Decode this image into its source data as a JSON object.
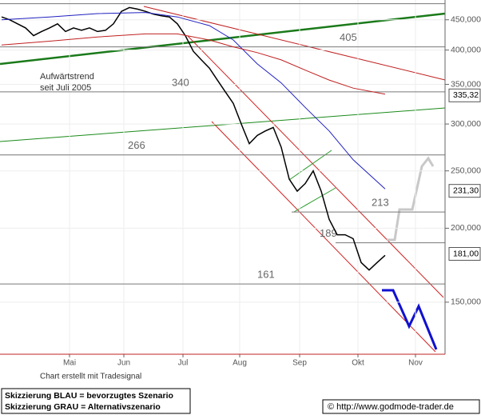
{
  "chart_data": {
    "type": "line",
    "log_y": true,
    "grid": true,
    "ylim": [
      122.5,
      486
    ],
    "yticks": [
      {
        "value": 450,
        "label": "450,000"
      },
      {
        "value": 400,
        "label": "400,000"
      },
      {
        "value": 350,
        "label": "350,000"
      },
      {
        "value": 300,
        "label": "300,000"
      },
      {
        "value": 250,
        "label": "250,000"
      },
      {
        "value": 200,
        "label": "200,000"
      },
      {
        "value": 150,
        "label": "150,000"
      }
    ],
    "xlim": [
      -0.2,
      55.8
    ],
    "xticks": [
      {
        "value": 8.5,
        "label": "Mai"
      },
      {
        "value": 15.3,
        "label": "Jun"
      },
      {
        "value": 22.7,
        "label": "Jul"
      },
      {
        "value": 29.8,
        "label": "Aug"
      },
      {
        "value": 37.3,
        "label": "Sep"
      },
      {
        "value": 44.6,
        "label": "Okt"
      },
      {
        "value": 51.8,
        "label": "Nov"
      }
    ],
    "series": [
      {
        "color": "#000000",
        "x": [
          0,
          1,
          2,
          3,
          4,
          5,
          6,
          7,
          8,
          9,
          10,
          11,
          12,
          13,
          14,
          15,
          16,
          17,
          18,
          19,
          20,
          21,
          22,
          23,
          24,
          25,
          26,
          27,
          28,
          29,
          30,
          31,
          32,
          33,
          34,
          35,
          36,
          37,
          38,
          39,
          40,
          41,
          42,
          43,
          44,
          45,
          46,
          47,
          48
        ],
        "values": [
          455,
          450,
          443,
          436,
          423,
          430,
          436,
          443,
          430,
          436,
          432,
          436,
          430,
          432,
          443,
          465,
          472,
          469,
          465,
          460,
          457,
          455,
          443,
          423,
          398,
          385,
          373,
          356,
          340,
          325,
          300,
          278,
          287,
          292,
          296,
          274,
          242,
          231,
          238,
          250,
          231,
          207,
          195,
          195,
          192,
          175,
          170,
          175,
          180
        ]
      },
      {
        "color": "#2020c0",
        "x": [
          0,
          6,
          12,
          18,
          22,
          26,
          29,
          32,
          35,
          38,
          41,
          44,
          48
        ],
        "values": [
          450,
          455,
          461,
          463,
          455,
          440,
          416,
          379,
          352,
          320,
          292,
          261,
          233
        ]
      },
      {
        "color": "#c02020",
        "x": [
          0,
          6,
          12,
          18,
          22,
          26,
          29,
          32,
          35,
          38,
          41,
          44,
          48
        ],
        "values": [
          408,
          414,
          421,
          426,
          426,
          416,
          405,
          396,
          385,
          370,
          356,
          345,
          337
        ]
      }
    ],
    "levels": [
      479,
      405,
      340,
      266,
      213,
      189,
      161
    ],
    "last_labels": [
      {
        "value": 335.32,
        "label": "335,32"
      },
      {
        "value": 231.3,
        "label": "231,30"
      },
      {
        "value": 181.0,
        "label": "181,00"
      }
    ],
    "annotation": [
      "Aufwärtstrend",
      "seit Juli 2005"
    ]
  },
  "footer": {
    "credit": "Chart erstellt mit Tradesignal",
    "legend_blue": "Skizzierung BLAU = bevorzugtes Szenario",
    "legend_gray": "Skizzierung GRAU = Alternativszenario",
    "source": "© http://www.godmode-trader.de"
  }
}
